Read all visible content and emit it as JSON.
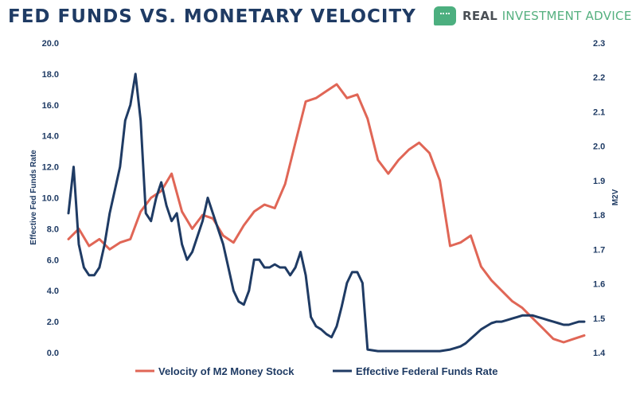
{
  "header": {
    "title": "FED FUNDS VS. MONETARY VELOCITY",
    "brand_main": "REAL ",
    "brand_accent": "INVESTMENT ADVICE",
    "brand_icon": "chat-bubble-icon"
  },
  "chart_data": {
    "type": "line",
    "title": "FED FUNDS VS. MONETARY VELOCITY",
    "ylabel_left": "Effective Fed Funds Rate",
    "ylabel_right": "M2V",
    "yleft_lim": [
      0,
      20
    ],
    "yright_lim": [
      1.4,
      2.3
    ],
    "yleft_ticks": [
      "0.0",
      "2.0",
      "4.0",
      "6.0",
      "8.0",
      "10.0",
      "12.0",
      "14.0",
      "16.0",
      "18.0",
      "20.0"
    ],
    "yright_ticks": [
      "1.4",
      "1.5",
      "1.6",
      "1.7",
      "1.8",
      "1.9",
      "2.0",
      "2.1",
      "2.2",
      "2.3"
    ],
    "grid": false,
    "legend_position": "bottom",
    "colors": {
      "velocity": "#e06656",
      "fedfunds": "#1f3b64"
    },
    "series": [
      {
        "name": "Velocity of M2 Money Stock",
        "axis": "right",
        "x": [
          0,
          2,
          4,
          6,
          8,
          10,
          12,
          14,
          16,
          18,
          20,
          22,
          24,
          26,
          28,
          30,
          32,
          34,
          36,
          38,
          40,
          42,
          44,
          46,
          48,
          50,
          52,
          54,
          56,
          58,
          60,
          62,
          64,
          66,
          68,
          70,
          72,
          74,
          76,
          78,
          80,
          82,
          84,
          86,
          88,
          90,
          92,
          94,
          96,
          98,
          100
        ],
        "values": [
          1.73,
          1.76,
          1.71,
          1.73,
          1.7,
          1.72,
          1.73,
          1.81,
          1.85,
          1.87,
          1.92,
          1.81,
          1.76,
          1.8,
          1.79,
          1.74,
          1.72,
          1.77,
          1.81,
          1.83,
          1.82,
          1.89,
          2.01,
          2.13,
          2.14,
          2.16,
          2.18,
          2.14,
          2.15,
          2.08,
          1.96,
          1.92,
          1.96,
          1.99,
          2.01,
          1.98,
          1.9,
          1.71,
          1.72,
          1.74,
          1.65,
          1.61,
          1.58,
          1.55,
          1.53,
          1.5,
          1.47,
          1.44,
          1.43,
          1.44,
          1.45
        ]
      },
      {
        "name": "Effective Federal Funds Rate",
        "axis": "left",
        "x": [
          0,
          1,
          2,
          3,
          4,
          5,
          6,
          7,
          8,
          9,
          10,
          11,
          12,
          13,
          14,
          15,
          16,
          17,
          18,
          19,
          20,
          21,
          22,
          23,
          24,
          25,
          26,
          27,
          28,
          29,
          30,
          31,
          32,
          33,
          34,
          35,
          36,
          37,
          38,
          39,
          40,
          41,
          42,
          43,
          44,
          45,
          46,
          47,
          48,
          49,
          50,
          51,
          52,
          53,
          54,
          55,
          56,
          57,
          58,
          59,
          60,
          61,
          62,
          63,
          64,
          65,
          66,
          67,
          68,
          69,
          70,
          71,
          72,
          73,
          74,
          75,
          76,
          77,
          78,
          79,
          80,
          81,
          82,
          83,
          84,
          85,
          86,
          87,
          88,
          89,
          90,
          91,
          92,
          93,
          94,
          95,
          96,
          97,
          98,
          99,
          100
        ],
        "values": [
          9.0,
          12.0,
          7.0,
          5.5,
          5.0,
          5.0,
          5.5,
          7.0,
          9.0,
          10.5,
          12.0,
          15.0,
          16.0,
          18.0,
          15.0,
          9.0,
          8.5,
          10.0,
          11.0,
          9.5,
          8.5,
          9.0,
          7.0,
          6.0,
          6.5,
          7.5,
          8.5,
          10.0,
          9.0,
          8.0,
          7.0,
          5.5,
          4.0,
          3.3,
          3.1,
          4.0,
          6.0,
          6.0,
          5.5,
          5.5,
          5.7,
          5.5,
          5.5,
          5.0,
          5.5,
          6.5,
          5.0,
          2.3,
          1.7,
          1.5,
          1.2,
          1.0,
          1.7,
          3.0,
          4.5,
          5.2,
          5.2,
          4.5,
          0.2,
          0.15,
          0.1,
          0.1,
          0.1,
          0.1,
          0.1,
          0.1,
          0.1,
          0.1,
          0.1,
          0.1,
          0.1,
          0.1,
          0.1,
          0.15,
          0.2,
          0.3,
          0.4,
          0.6,
          0.9,
          1.2,
          1.5,
          1.7,
          1.9,
          2.0,
          2.0,
          2.1,
          2.2,
          2.3,
          2.4,
          2.4,
          2.4,
          2.3,
          2.2,
          2.1,
          2.0,
          1.9,
          1.8,
          1.8,
          1.9,
          2.0,
          2.0
        ]
      }
    ]
  },
  "legend": {
    "velocity_label": "Velocity of M2 Money Stock",
    "fedfunds_label": "Effective Federal Funds Rate"
  }
}
